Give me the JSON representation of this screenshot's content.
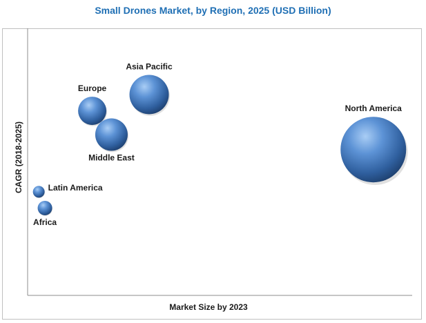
{
  "chart_data": {
    "type": "scatter",
    "variant": "bubble",
    "title": "Small Drones Market, by Region, 2025 (USD Billion)",
    "xlabel": "Market Size by 2023",
    "ylabel": "CAGR (2018-2025)",
    "xlim": [
      0,
      100
    ],
    "ylim": [
      0,
      100
    ],
    "grid": false,
    "legend": "none",
    "bubble_color": "#3b6eae",
    "points": [
      {
        "label": "North America",
        "x": 89.9,
        "y": 54.6,
        "size": 47.5,
        "label_pos": "above"
      },
      {
        "label": "Asia Pacific",
        "x": 31.6,
        "y": 75.2,
        "size": 28.5,
        "label_pos": "above"
      },
      {
        "label": "Europe",
        "x": 16.8,
        "y": 69.1,
        "size": 20.5,
        "label_pos": "above"
      },
      {
        "label": "Middle East",
        "x": 21.8,
        "y": 60.2,
        "size": 23.5,
        "label_pos": "below"
      },
      {
        "label": "Latin America",
        "x": 2.9,
        "y": 38.8,
        "size": 8.5,
        "label_pos": "right"
      },
      {
        "label": "Africa",
        "x": 4.5,
        "y": 32.7,
        "size": 10.5,
        "label_pos": "below"
      }
    ]
  }
}
